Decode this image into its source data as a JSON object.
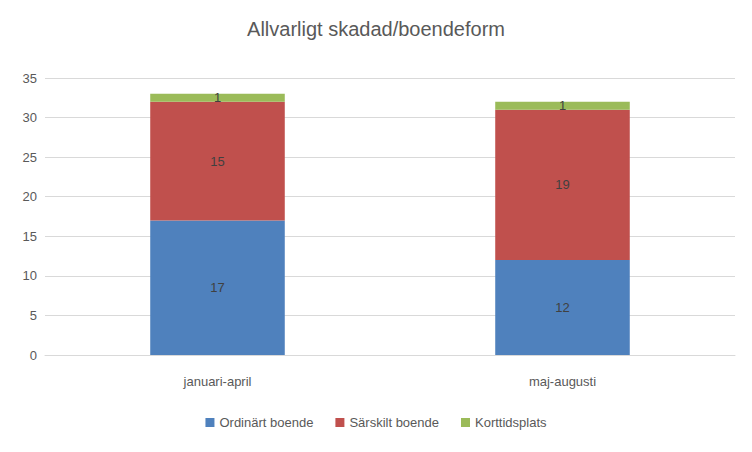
{
  "chart_data": {
    "type": "bar",
    "title": "Allvarligt skadad/boendeform",
    "categories": [
      "januari-april",
      "maj-augusti"
    ],
    "series": [
      {
        "name": "Ordinärt boende",
        "color": "#4f81bd",
        "values": [
          17,
          12
        ]
      },
      {
        "name": "Särskilt boende",
        "color": "#c0504d",
        "values": [
          15,
          19
        ]
      },
      {
        "name": "Korttidsplats",
        "color": "#9bbb59",
        "values": [
          1,
          1
        ]
      }
    ],
    "ylim": [
      0,
      35
    ],
    "yticks": [
      0,
      5,
      10,
      15,
      20,
      25,
      30,
      35
    ],
    "grid": true,
    "stacked": true,
    "data_labels": true,
    "legend": "bottom"
  }
}
